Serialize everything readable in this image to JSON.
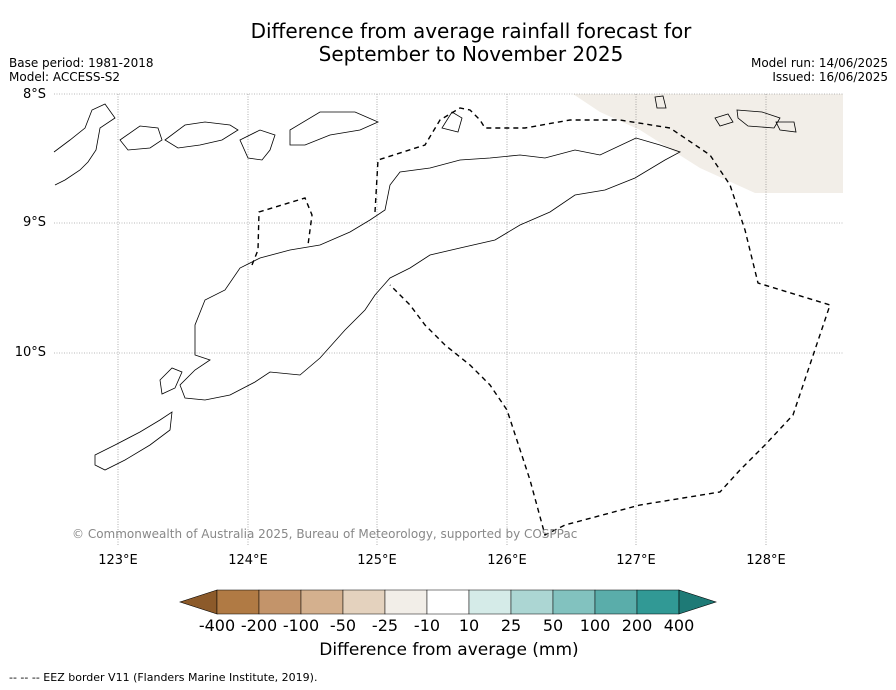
{
  "title_line1": "Difference from average rainfall forecast for",
  "title_line2": "September to November 2025",
  "base_period": "Base period: 1981-2018",
  "model": "Model: ACCESS-S2",
  "model_run": "Model run: 14/06/2025",
  "issued": "Issued: 16/06/2025",
  "lat_labels": [
    "8°S",
    "9°S",
    "10°S"
  ],
  "lon_labels": [
    "123°E",
    "124°E",
    "125°E",
    "126°E",
    "127°E",
    "128°E"
  ],
  "copyright": "© Commonwealth of Australia 2025, Bureau of Meteorology, supported by COSPPac",
  "colorbar": {
    "label": "Difference from average (mm)",
    "ticks": [
      "-400",
      "-200",
      "-100",
      "-50",
      "-25",
      "-10",
      "10",
      "25",
      "50",
      "100",
      "200",
      "400"
    ],
    "colors": [
      "#8c5a2a",
      "#b07a44",
      "#c3946a",
      "#d4b08e",
      "#e4d2be",
      "#f2eee8",
      "#ffffff",
      "#d5ebe8",
      "#acd6d3",
      "#82c2bf",
      "#5aadaa",
      "#319995",
      "#1e7a76"
    ]
  },
  "footnote": "--  --  -- EEZ border V11 (Flanders Marine Institute, 2019)."
}
